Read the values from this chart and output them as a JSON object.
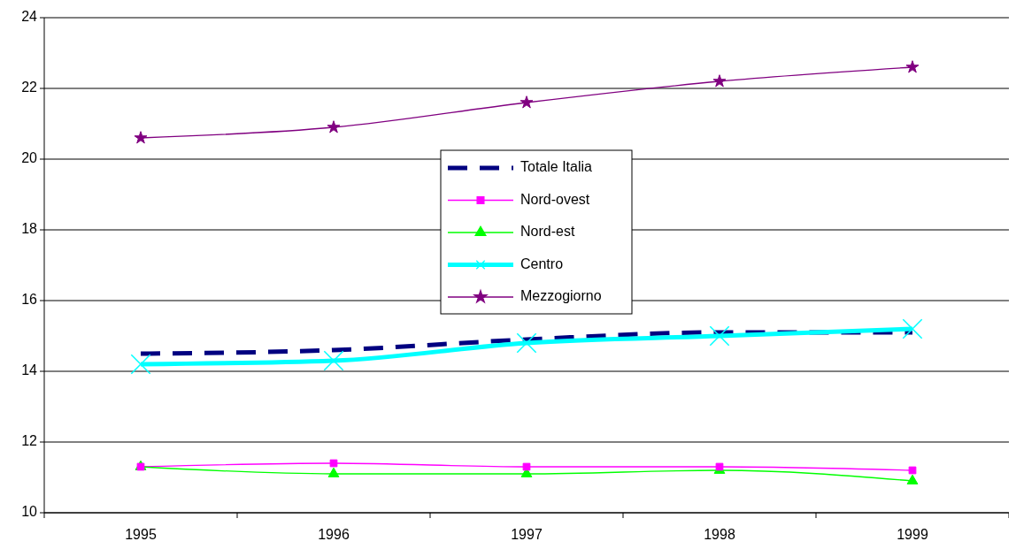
{
  "chart_data": {
    "type": "line",
    "categories": [
      "1995",
      "1996",
      "1997",
      "1998",
      "1999"
    ],
    "ylim": [
      10,
      24
    ],
    "yticks": [
      10,
      12,
      14,
      16,
      18,
      20,
      22,
      24
    ],
    "grid": "y",
    "legend": "top",
    "series": [
      {
        "name": "Totale Italia",
        "color": "#000080",
        "values": [
          14.5,
          14.6,
          14.9,
          15.1,
          15.1
        ],
        "line_style": "dashed",
        "marker": "none"
      },
      {
        "name": "Nord-ovest",
        "color": "#ff00ff",
        "values": [
          11.3,
          11.4,
          11.3,
          11.3,
          11.2
        ],
        "marker": "square"
      },
      {
        "name": "Nord-est",
        "color": "#00ff00",
        "values": [
          11.3,
          11.1,
          11.1,
          11.2,
          10.9
        ],
        "marker": "triangle"
      },
      {
        "name": "Centro",
        "color": "#00ffff",
        "values": [
          14.2,
          14.3,
          14.8,
          15.0,
          15.2
        ],
        "marker": "cross"
      },
      {
        "name": "Mezzogiorno",
        "color": "#800080",
        "values": [
          20.6,
          20.9,
          21.6,
          22.2,
          22.6
        ],
        "marker": "star"
      }
    ]
  }
}
